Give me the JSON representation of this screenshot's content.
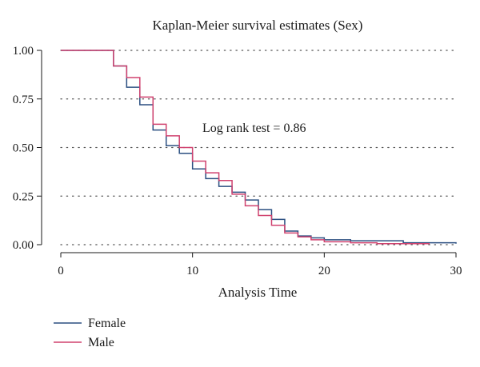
{
  "chart_data": {
    "type": "line",
    "title": "Kaplan-Meier survival estimates (Sex)",
    "xlabel": "Analysis Time",
    "ylabel": "",
    "xlim": [
      0,
      30
    ],
    "ylim": [
      0,
      1
    ],
    "xticks": [
      0,
      10,
      20,
      30
    ],
    "xtick_labels": [
      "0",
      "10",
      "20",
      "30"
    ],
    "yticks": [
      0,
      0.25,
      0.5,
      0.75,
      1
    ],
    "ytick_labels": [
      "0.00",
      "0.25",
      "0.50",
      "0.75",
      "1.00"
    ],
    "grid": "horizontal-dotted",
    "legend_position": "bottom-left",
    "step": true,
    "annotation": "Log rank test = 0.86",
    "series": [
      {
        "name": "Female",
        "color": "#2b4f81",
        "x": [
          0,
          4,
          5,
          6,
          7,
          8,
          9,
          10,
          11,
          12,
          13,
          14,
          15,
          16,
          17,
          18,
          19,
          20,
          22,
          26,
          30
        ],
        "y": [
          1.0,
          0.92,
          0.81,
          0.72,
          0.59,
          0.51,
          0.47,
          0.39,
          0.34,
          0.3,
          0.27,
          0.23,
          0.18,
          0.13,
          0.07,
          0.045,
          0.035,
          0.025,
          0.02,
          0.01,
          0.005
        ]
      },
      {
        "name": "Male",
        "color": "#d0426f",
        "x": [
          0,
          4,
          5,
          6,
          7,
          8,
          9,
          10,
          11,
          12,
          13,
          14,
          15,
          16,
          17,
          18,
          19,
          20,
          22,
          24,
          26,
          28
        ],
        "y": [
          1.0,
          0.92,
          0.86,
          0.76,
          0.62,
          0.56,
          0.5,
          0.43,
          0.37,
          0.33,
          0.26,
          0.2,
          0.15,
          0.1,
          0.06,
          0.04,
          0.025,
          0.015,
          0.01,
          0.005,
          0.005,
          0.005
        ]
      }
    ]
  }
}
